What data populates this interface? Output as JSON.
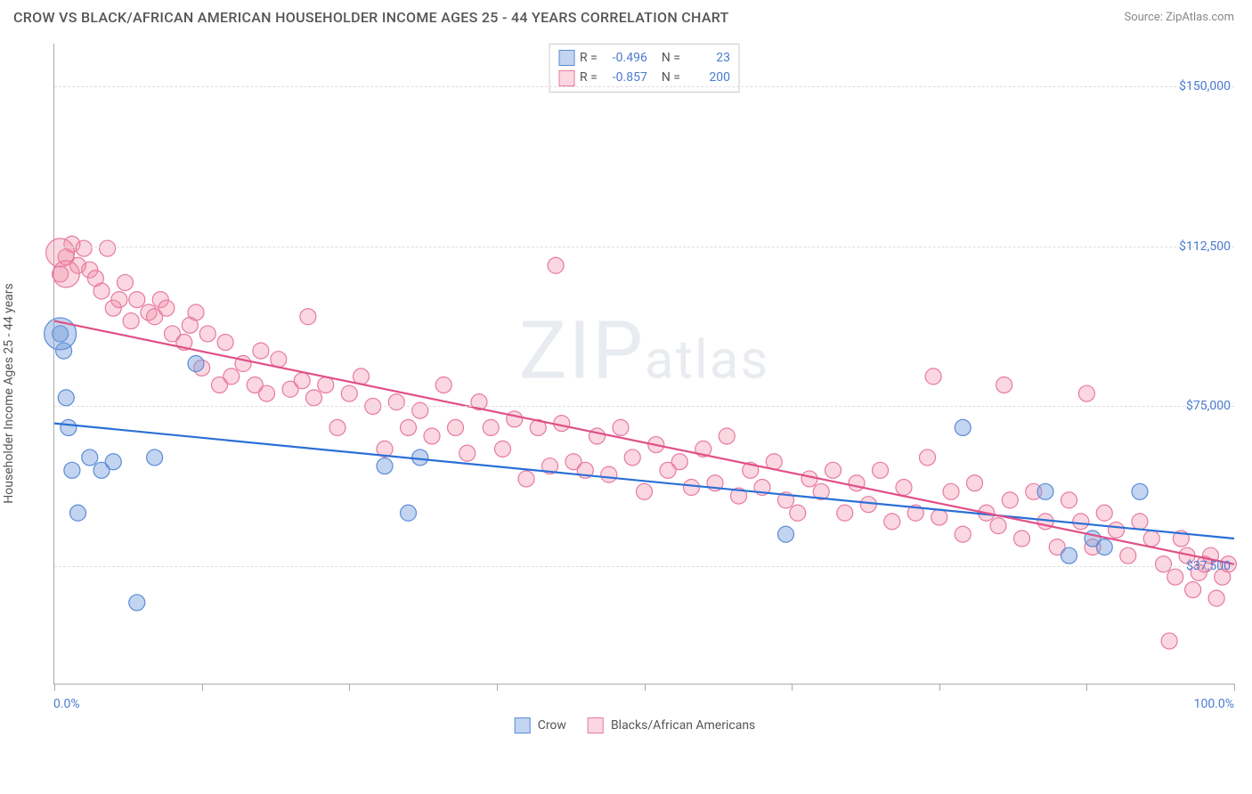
{
  "title": "CROW VS BLACK/AFRICAN AMERICAN HOUSEHOLDER INCOME AGES 25 - 44 YEARS CORRELATION CHART",
  "source": "Source: ZipAtlas.com",
  "y_axis_label": "Householder Income Ages 25 - 44 years",
  "watermark_main": "ZIP",
  "watermark_sub": "atlas",
  "chart": {
    "type": "scatter",
    "background_color": "#ffffff",
    "grid_color": "#dddddd",
    "axis_color": "#aaaaaa",
    "tick_label_color": "#4a7bd0",
    "xlim": [
      0,
      100
    ],
    "x_tick_positions": [
      0,
      12.5,
      25,
      37.5,
      50,
      62.5,
      75,
      87.5,
      100
    ],
    "x_min_label": "0.0%",
    "x_max_label": "100.0%",
    "ylim": [
      10000,
      160000
    ],
    "y_ticks": [
      {
        "value": 37500,
        "label": "$37,500"
      },
      {
        "value": 75000,
        "label": "$75,000"
      },
      {
        "value": 112500,
        "label": "$112,500"
      },
      {
        "value": 150000,
        "label": "$150,000"
      }
    ],
    "series": [
      {
        "name": "Crow",
        "legend_label": "Crow",
        "fill_color": "rgba(120,160,220,0.45)",
        "stroke_color": "#5b8bd8",
        "marker_radius": 9,
        "line_color": "#2a6fd6",
        "line_width": 2.2,
        "R": "-0.496",
        "N": "23",
        "trend": {
          "x1": 0,
          "y1": 71000,
          "x2": 100,
          "y2": 44000
        },
        "points": [
          [
            0.5,
            92000
          ],
          [
            0.8,
            88000
          ],
          [
            1.0,
            77000
          ],
          [
            1.2,
            70000
          ],
          [
            1.5,
            60000
          ],
          [
            2.0,
            50000
          ],
          [
            3.0,
            63000
          ],
          [
            4.0,
            60000
          ],
          [
            5.0,
            62000
          ],
          [
            7.0,
            29000
          ],
          [
            8.5,
            63000
          ],
          [
            12.0,
            85000
          ],
          [
            28.0,
            61000
          ],
          [
            30.0,
            50000
          ],
          [
            31.0,
            63000
          ],
          [
            62.0,
            45000
          ],
          [
            77.0,
            70000
          ],
          [
            84.0,
            55000
          ],
          [
            86.0,
            40000
          ],
          [
            88.0,
            44000
          ],
          [
            89.0,
            42000
          ],
          [
            92.0,
            55000
          ]
        ],
        "big_points": [
          [
            0.5,
            92000,
            18
          ]
        ]
      },
      {
        "name": "Blacks/African Americans",
        "legend_label": "Blacks/African Americans",
        "fill_color": "rgba(240,140,170,0.35)",
        "stroke_color": "#e77aa0",
        "marker_radius": 9,
        "line_color": "#e05088",
        "line_width": 2.2,
        "R": "-0.857",
        "N": "200",
        "trend": {
          "x1": 0,
          "y1": 95000,
          "x2": 100,
          "y2": 38000
        },
        "points": [
          [
            0.5,
            106000
          ],
          [
            1,
            110000
          ],
          [
            1.5,
            113000
          ],
          [
            2,
            108000
          ],
          [
            2.5,
            112000
          ],
          [
            3,
            107000
          ],
          [
            3.5,
            105000
          ],
          [
            4,
            102000
          ],
          [
            4.5,
            112000
          ],
          [
            5,
            98000
          ],
          [
            5.5,
            100000
          ],
          [
            6,
            104000
          ],
          [
            6.5,
            95000
          ],
          [
            7,
            100000
          ],
          [
            8,
            97000
          ],
          [
            8.5,
            96000
          ],
          [
            9,
            100000
          ],
          [
            9.5,
            98000
          ],
          [
            10,
            92000
          ],
          [
            11,
            90000
          ],
          [
            11.5,
            94000
          ],
          [
            12,
            97000
          ],
          [
            12.5,
            84000
          ],
          [
            13,
            92000
          ],
          [
            14,
            80000
          ],
          [
            14.5,
            90000
          ],
          [
            15,
            82000
          ],
          [
            16,
            85000
          ],
          [
            17,
            80000
          ],
          [
            17.5,
            88000
          ],
          [
            18,
            78000
          ],
          [
            19,
            86000
          ],
          [
            20,
            79000
          ],
          [
            21,
            81000
          ],
          [
            21.5,
            96000
          ],
          [
            22,
            77000
          ],
          [
            23,
            80000
          ],
          [
            24,
            70000
          ],
          [
            25,
            78000
          ],
          [
            26,
            82000
          ],
          [
            27,
            75000
          ],
          [
            28,
            65000
          ],
          [
            29,
            76000
          ],
          [
            30,
            70000
          ],
          [
            31,
            74000
          ],
          [
            32,
            68000
          ],
          [
            33,
            80000
          ],
          [
            34,
            70000
          ],
          [
            35,
            64000
          ],
          [
            36,
            76000
          ],
          [
            37,
            70000
          ],
          [
            38,
            65000
          ],
          [
            39,
            72000
          ],
          [
            40,
            58000
          ],
          [
            41,
            70000
          ],
          [
            42,
            61000
          ],
          [
            42.5,
            108000
          ],
          [
            43,
            71000
          ],
          [
            44,
            62000
          ],
          [
            45,
            60000
          ],
          [
            46,
            68000
          ],
          [
            47,
            59000
          ],
          [
            48,
            70000
          ],
          [
            49,
            63000
          ],
          [
            50,
            55000
          ],
          [
            51,
            66000
          ],
          [
            52,
            60000
          ],
          [
            53,
            62000
          ],
          [
            54,
            56000
          ],
          [
            55,
            65000
          ],
          [
            56,
            57000
          ],
          [
            57,
            68000
          ],
          [
            58,
            54000
          ],
          [
            59,
            60000
          ],
          [
            60,
            56000
          ],
          [
            61,
            62000
          ],
          [
            62,
            53000
          ],
          [
            63,
            50000
          ],
          [
            64,
            58000
          ],
          [
            65,
            55000
          ],
          [
            66,
            60000
          ],
          [
            67,
            50000
          ],
          [
            68,
            57000
          ],
          [
            69,
            52000
          ],
          [
            70,
            60000
          ],
          [
            71,
            48000
          ],
          [
            72,
            56000
          ],
          [
            73,
            50000
          ],
          [
            74,
            63000
          ],
          [
            74.5,
            82000
          ],
          [
            75,
            49000
          ],
          [
            76,
            55000
          ],
          [
            77,
            45000
          ],
          [
            78,
            57000
          ],
          [
            79,
            50000
          ],
          [
            80,
            47000
          ],
          [
            80.5,
            80000
          ],
          [
            81,
            53000
          ],
          [
            82,
            44000
          ],
          [
            83,
            55000
          ],
          [
            84,
            48000
          ],
          [
            85,
            42000
          ],
          [
            86,
            53000
          ],
          [
            87,
            48000
          ],
          [
            87.5,
            78000
          ],
          [
            88,
            42000
          ],
          [
            89,
            50000
          ],
          [
            90,
            46000
          ],
          [
            91,
            40000
          ],
          [
            92,
            48000
          ],
          [
            93,
            44000
          ],
          [
            94,
            38000
          ],
          [
            94.5,
            20000
          ],
          [
            95,
            35000
          ],
          [
            95.5,
            44000
          ],
          [
            96,
            40000
          ],
          [
            96.5,
            32000
          ],
          [
            97,
            36000
          ],
          [
            97.5,
            38000
          ],
          [
            98,
            40000
          ],
          [
            98.5,
            30000
          ],
          [
            99,
            35000
          ],
          [
            99.5,
            38000
          ]
        ],
        "big_points": [
          [
            0.5,
            111000,
            16
          ],
          [
            1,
            106000,
            15
          ]
        ]
      }
    ]
  }
}
